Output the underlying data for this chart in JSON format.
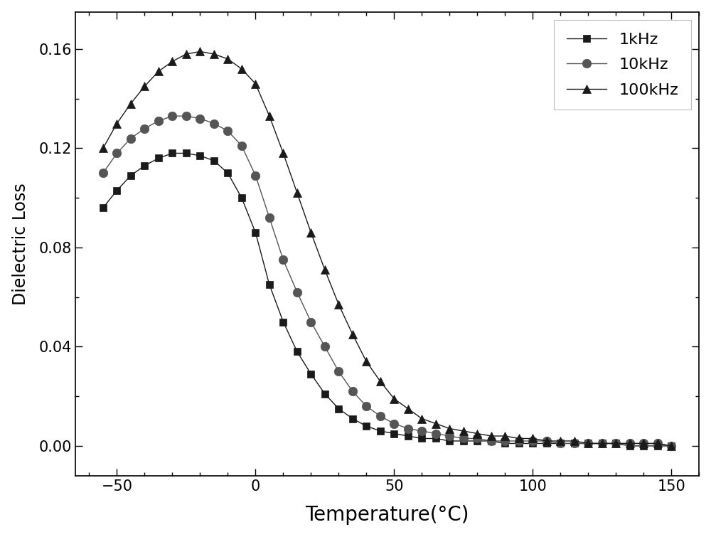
{
  "title": "",
  "xlabel": "Temperature(°C)",
  "ylabel": "Dielectric Loss",
  "xlim": [
    -65,
    160
  ],
  "ylim": [
    -0.012,
    0.175
  ],
  "xticks": [
    -50,
    0,
    50,
    100,
    150
  ],
  "yticks": [
    0.0,
    0.04,
    0.08,
    0.12,
    0.16
  ],
  "series": [
    {
      "label": "1kHz",
      "color": "#1a1a1a",
      "marker": "s",
      "markersize": 7,
      "linewidth": 1.0,
      "x": [
        -55,
        -50,
        -45,
        -40,
        -35,
        -30,
        -25,
        -20,
        -15,
        -10,
        -5,
        0,
        5,
        10,
        15,
        20,
        25,
        30,
        35,
        40,
        45,
        50,
        55,
        60,
        65,
        70,
        75,
        80,
        85,
        90,
        95,
        100,
        105,
        110,
        115,
        120,
        125,
        130,
        135,
        140,
        145,
        150
      ],
      "y": [
        0.096,
        0.103,
        0.109,
        0.113,
        0.116,
        0.118,
        0.118,
        0.117,
        0.115,
        0.11,
        0.1,
        0.086,
        0.065,
        0.05,
        0.038,
        0.029,
        0.021,
        0.015,
        0.011,
        0.008,
        0.006,
        0.005,
        0.004,
        0.003,
        0.003,
        0.002,
        0.002,
        0.002,
        0.002,
        0.001,
        0.001,
        0.001,
        0.001,
        0.001,
        0.001,
        0.001,
        0.001,
        0.001,
        0.0,
        0.0,
        0.0,
        0.0
      ]
    },
    {
      "label": "10kHz",
      "color": "#555555",
      "marker": "o",
      "markersize": 9,
      "linewidth": 1.0,
      "x": [
        -55,
        -50,
        -45,
        -40,
        -35,
        -30,
        -25,
        -20,
        -15,
        -10,
        -5,
        0,
        5,
        10,
        15,
        20,
        25,
        30,
        35,
        40,
        45,
        50,
        55,
        60,
        65,
        70,
        75,
        80,
        85,
        90,
        95,
        100,
        105,
        110,
        115,
        120,
        125,
        130,
        135,
        140,
        145,
        150
      ],
      "y": [
        0.11,
        0.118,
        0.124,
        0.128,
        0.131,
        0.133,
        0.133,
        0.132,
        0.13,
        0.127,
        0.121,
        0.109,
        0.092,
        0.075,
        0.062,
        0.05,
        0.04,
        0.03,
        0.022,
        0.016,
        0.012,
        0.009,
        0.007,
        0.006,
        0.005,
        0.004,
        0.003,
        0.003,
        0.002,
        0.002,
        0.002,
        0.002,
        0.002,
        0.001,
        0.001,
        0.001,
        0.001,
        0.001,
        0.001,
        0.001,
        0.001,
        0.0
      ]
    },
    {
      "label": "100kHz",
      "color": "#1a1a1a",
      "marker": "^",
      "markersize": 8,
      "linewidth": 1.0,
      "x": [
        -55,
        -50,
        -45,
        -40,
        -35,
        -30,
        -25,
        -20,
        -15,
        -10,
        -5,
        0,
        5,
        10,
        15,
        20,
        25,
        30,
        35,
        40,
        45,
        50,
        55,
        60,
        65,
        70,
        75,
        80,
        85,
        90,
        95,
        100,
        105,
        110,
        115,
        120,
        125,
        130,
        135,
        140,
        145,
        150
      ],
      "y": [
        0.12,
        0.13,
        0.138,
        0.145,
        0.151,
        0.155,
        0.158,
        0.159,
        0.158,
        0.156,
        0.152,
        0.146,
        0.133,
        0.118,
        0.102,
        0.086,
        0.071,
        0.057,
        0.045,
        0.034,
        0.026,
        0.019,
        0.015,
        0.011,
        0.009,
        0.007,
        0.006,
        0.005,
        0.004,
        0.004,
        0.003,
        0.003,
        0.002,
        0.002,
        0.002,
        0.001,
        0.001,
        0.001,
        0.001,
        0.001,
        0.001,
        0.0
      ]
    }
  ],
  "background_color": "#ffffff",
  "figure_size": [
    10.0,
    7.55
  ],
  "dpi": 100
}
